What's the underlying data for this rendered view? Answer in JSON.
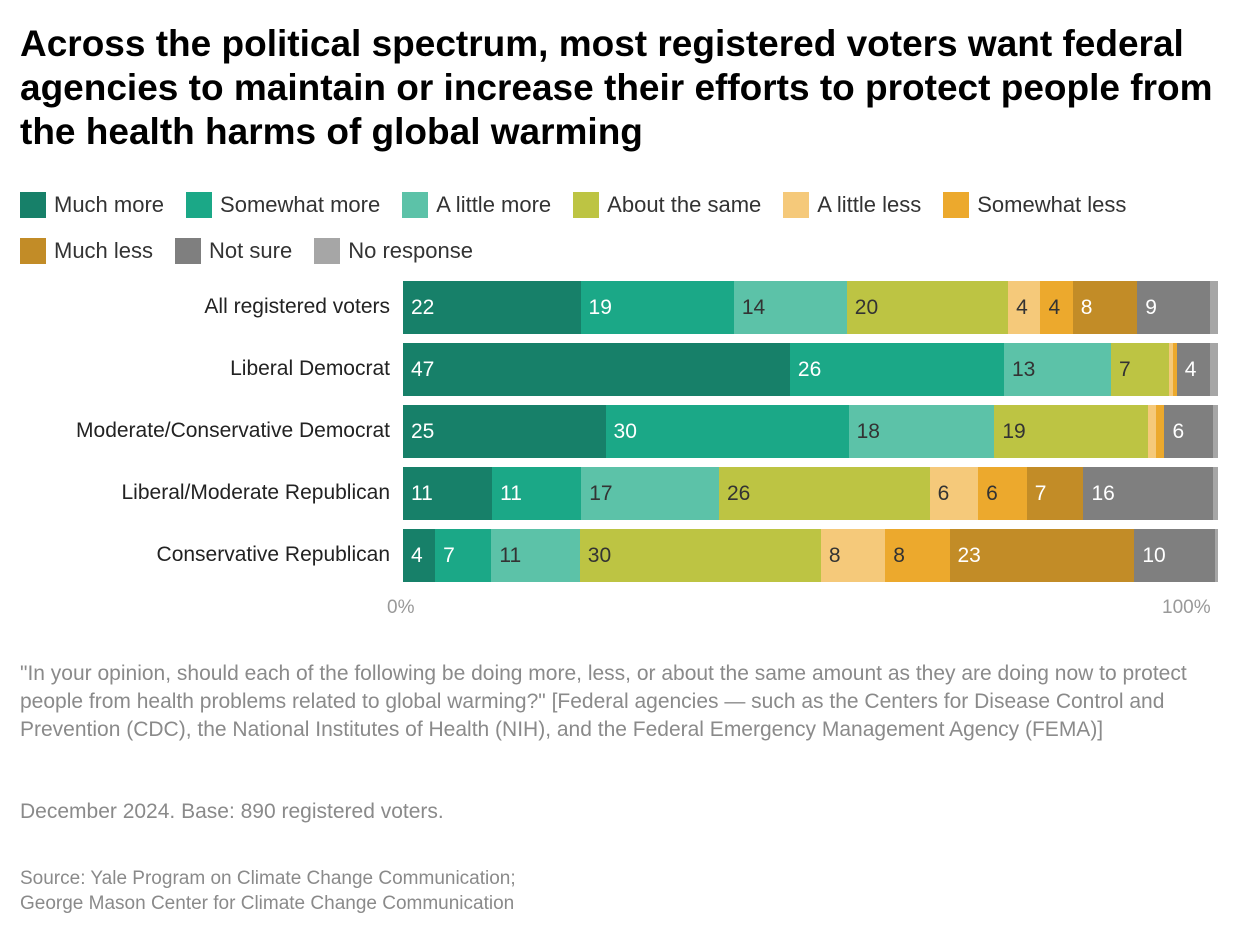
{
  "chart_data": {
    "type": "bar",
    "stacked": true,
    "orientation": "horizontal",
    "title": "Across the political spectrum, most registered voters want federal agencies to maintain or increase their efforts to protect people from the health harms of global warming",
    "series_names": [
      "Much more",
      "Somewhat more",
      "A little more",
      "About the same",
      "A little less",
      "Somewhat less",
      "Much less",
      "Not sure",
      "No response"
    ],
    "colors": [
      "#178069",
      "#1ba887",
      "#5cc2a8",
      "#bdc443",
      "#f5c97a",
      "#eca92d",
      "#c28c27",
      "#7f7f7f",
      "#a6a6a6"
    ],
    "label_colors": [
      "#fff",
      "#fff",
      "#333",
      "#333",
      "#333",
      "#333",
      "#fff",
      "#fff",
      "#fff"
    ],
    "categories": [
      "All registered voters",
      "Liberal Democrat",
      "Moderate/Conservative Democrat",
      "Liberal/Moderate Republican",
      "Conservative Republican"
    ],
    "values": [
      [
        22,
        19,
        14,
        20,
        4,
        4,
        8,
        9,
        1
      ],
      [
        47,
        26,
        13,
        7,
        0.5,
        0.5,
        0,
        4,
        1
      ],
      [
        25,
        30,
        18,
        19,
        1,
        1,
        0,
        6,
        0.6
      ],
      [
        11,
        11,
        17,
        26,
        6,
        6,
        7,
        16,
        0.6
      ],
      [
        4,
        7,
        11,
        30,
        8,
        8,
        23,
        10,
        0.4
      ]
    ],
    "xlim": [
      0,
      100
    ],
    "xtick_labels": [
      "0%",
      "100%"
    ],
    "legend": "top"
  },
  "notes": {
    "question": "\"In your opinion, should each of the following be doing more, less, or about the same amount as they are doing now to protect people from health problems related to global warming?\" [Federal agencies — such as the Centers for Disease Control and Prevention (CDC), the National Institutes of Health (NIH), and the Federal Emergency Management Agency (FEMA)]",
    "base": "December 2024. Base: 890 registered voters.",
    "source1": "Source: Yale Program on Climate Change Communication;",
    "source2": "George Mason Center for Climate Change Communication"
  }
}
